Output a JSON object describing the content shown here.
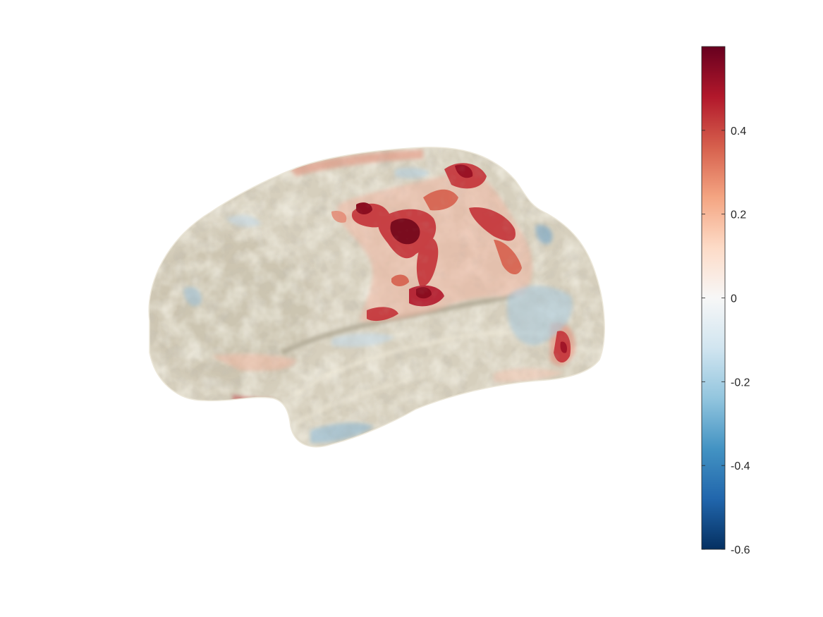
{
  "colorbar": {
    "min": -0.6,
    "max": 0.6,
    "ticks": [
      {
        "value": 0.4,
        "label": "0.4"
      },
      {
        "value": 0.2,
        "label": "0.2"
      },
      {
        "value": 0,
        "label": "0"
      },
      {
        "value": -0.2,
        "label": "-0.2"
      },
      {
        "value": -0.4,
        "label": "-0.4"
      },
      {
        "value": -0.6,
        "label": "-0.6"
      }
    ],
    "colormap": [
      "#053061",
      "#2166ac",
      "#4393c3",
      "#92c5de",
      "#d1e5f0",
      "#f7f7f7",
      "#fddbc7",
      "#f4a582",
      "#d6604d",
      "#b2182b",
      "#67001f"
    ]
  },
  "surface": {
    "base_color": "#d9d2c0",
    "activation_colors": {
      "strong_positive": "#8b0d1f",
      "positive": "#c43238",
      "weak_positive": "#e8a089",
      "weak_negative": "#a9c8da",
      "negative": "#6fa3c7"
    }
  }
}
